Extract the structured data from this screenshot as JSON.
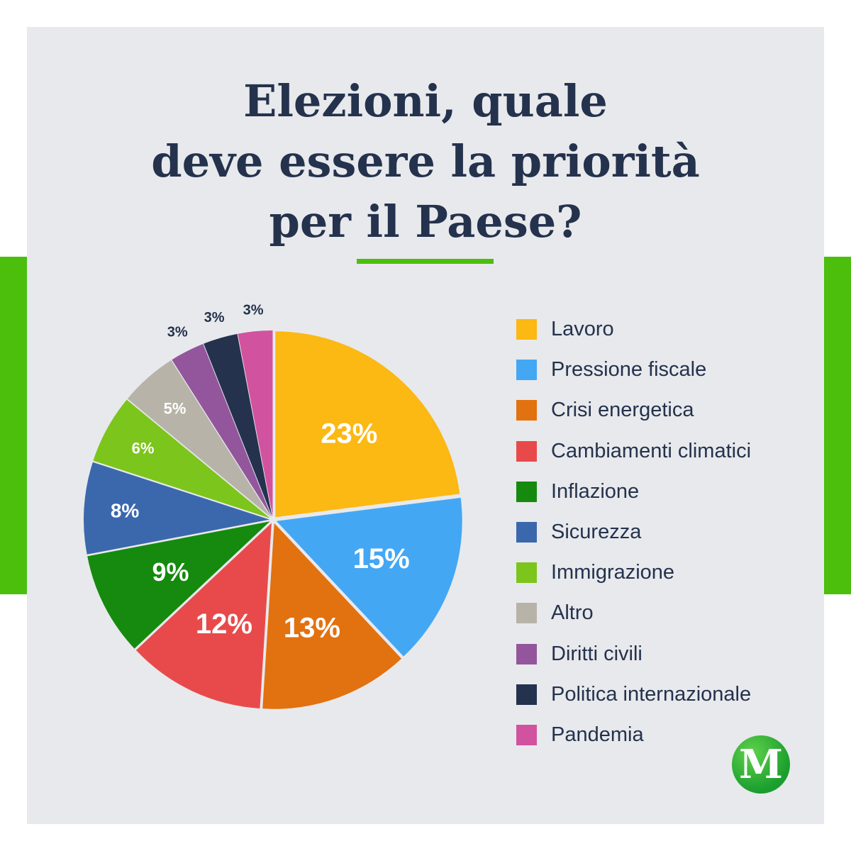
{
  "title_lines": [
    "Elezioni, quale",
    "deve essere la priorità",
    "per il Paese?"
  ],
  "colors": {
    "accent_green": "#4cbf0d",
    "background_card": "#e8e9ec",
    "title_text": "#24324d"
  },
  "logo": {
    "letter": "M",
    "icon": "m-logo-icon"
  },
  "chart_data": {
    "type": "pie",
    "categories": [
      "Lavoro",
      "Pressione fiscale",
      "Crisi energetica",
      "Cambiamenti climatici",
      "Inflazione",
      "Sicurezza",
      "Immigrazione",
      "Altro",
      "Diritti civili",
      "Politica internazionale",
      "Pandemia"
    ],
    "values": [
      23,
      15,
      13,
      12,
      9,
      8,
      6,
      5,
      3,
      3,
      3
    ],
    "labels": [
      "23%",
      "15%",
      "13%",
      "12%",
      "9%",
      "8%",
      "6%",
      "5%",
      "3%",
      "3%",
      "3%"
    ],
    "colors": [
      "#fcb813",
      "#44a7f4",
      "#e2710f",
      "#e84a4b",
      "#158a0e",
      "#3b68ad",
      "#7cc51c",
      "#b8b3a8",
      "#93569c",
      "#24324d",
      "#d1539f"
    ],
    "legend_position": "right",
    "start_angle": "12 o'clock, clockwise"
  }
}
